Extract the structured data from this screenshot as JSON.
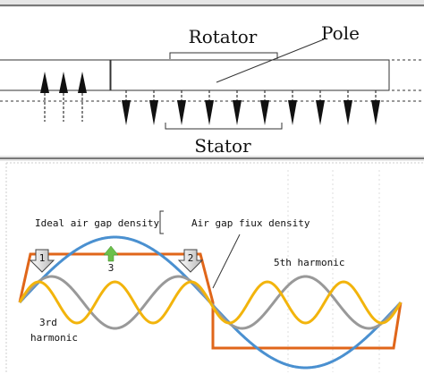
{
  "top_diagram": {
    "rotator_label": "Rotator",
    "pole_label": "Pole",
    "stator_label": "Stator"
  },
  "bottom_diagram": {
    "ideal_label": "Ideal air gap density",
    "flux_label": "Air gap fiux density",
    "fifth_label": "5th harmonic",
    "third_label_line1": "3rd",
    "third_label_line2": "harmonic",
    "marker1": "1",
    "marker2": "2",
    "marker3": "3"
  },
  "colors": {
    "fundamental": "#4a90d0",
    "ideal_square": "#e0661a",
    "third_harmonic": "#999999",
    "fifth_harmonic": "#f2b40c",
    "arrow_green": "#6cc04a"
  }
}
